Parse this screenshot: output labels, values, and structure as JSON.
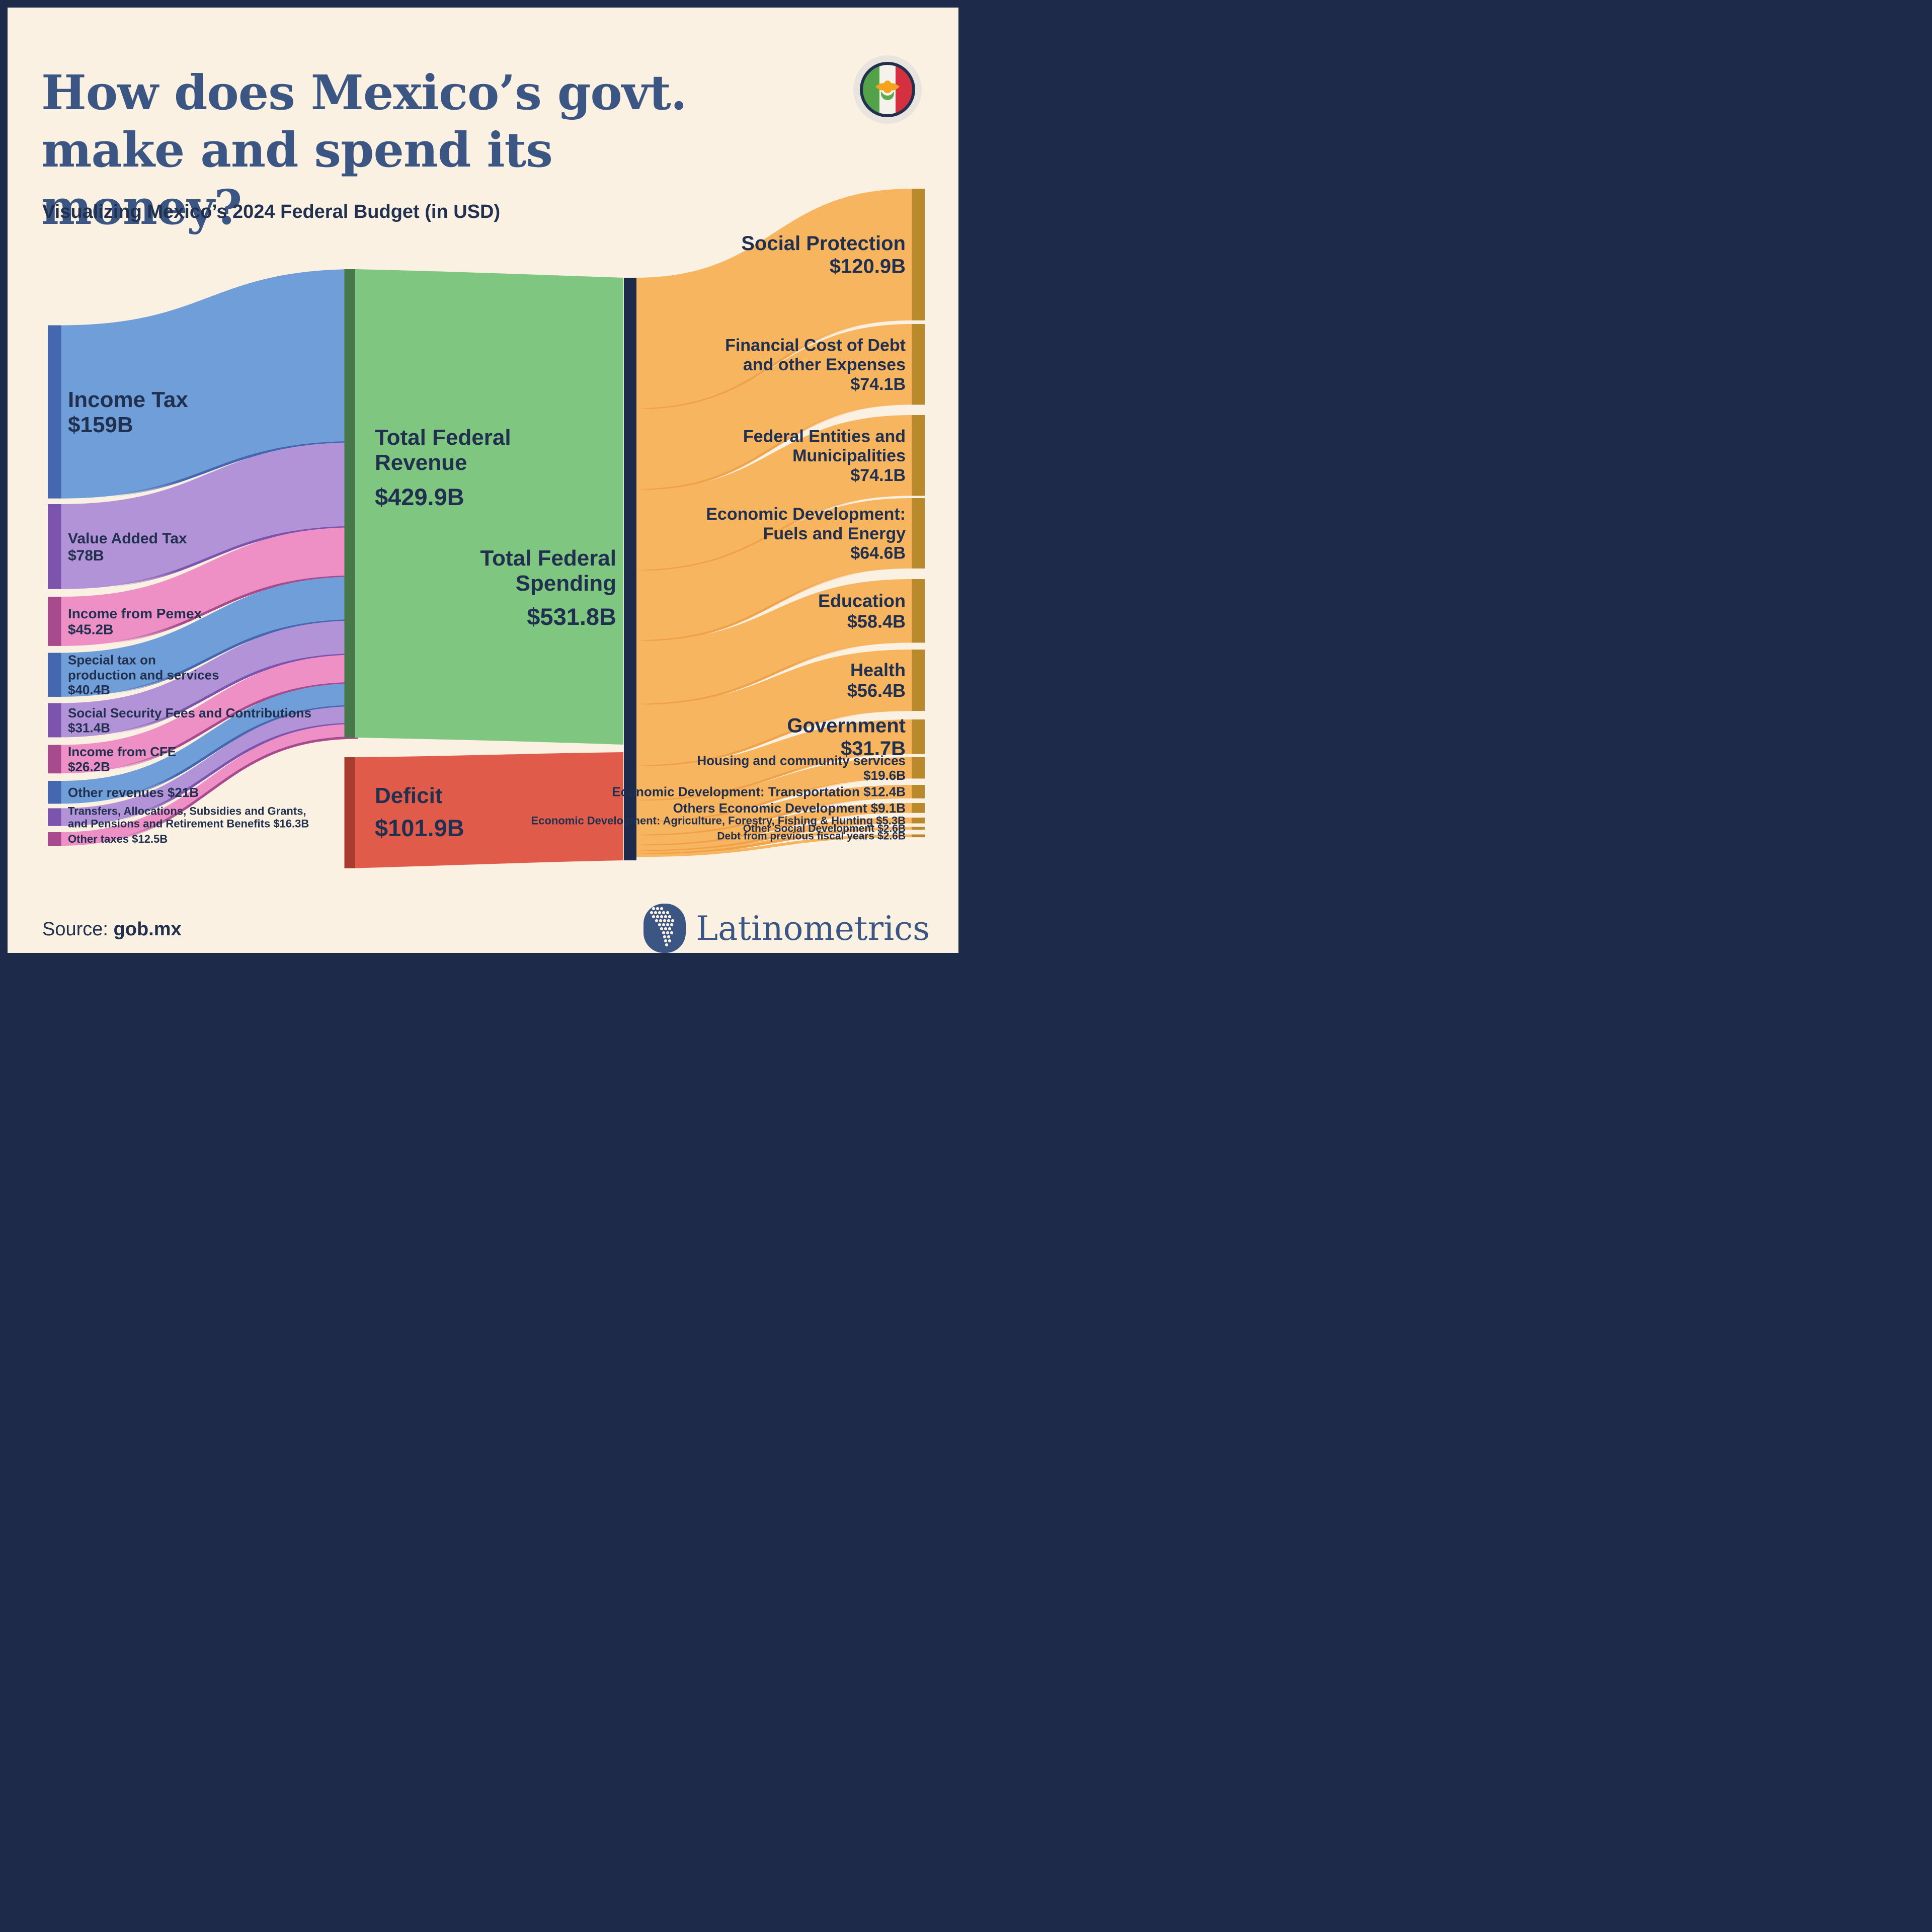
{
  "header": {
    "title_line1": "How does Mexico’s govt.",
    "title_line2": "make and spend its money?",
    "subtitle": "Visualizing Mexico’s 2024 Federal Budget (in USD)"
  },
  "footer": {
    "source_label": "Source:",
    "source_value": "gob.mx",
    "brand": "Latinometrics"
  },
  "icons": {
    "flag": "mexico-flag-icon",
    "brand": "latinometrics-logo-icon"
  },
  "colors": {
    "background": "#faf1e3",
    "navy": "#1e2a4a",
    "text_navy": "#22304f",
    "title_blue": "#3b5683",
    "blue": "#6f9ed8",
    "blue_edge": "#4467b0",
    "purple": "#b393d8",
    "purple_edge": "#7c54ae",
    "pink": "#ee8fc6",
    "pink_edge": "#a84a8e",
    "green": "#7fc681",
    "green_edge": "#47784a",
    "orange": "#f8b55f",
    "orange_edge": "#b9892b",
    "orange_streak": "#ef9d42",
    "red": "#e05b49",
    "red_edge": "#a93c2e",
    "flag_green": "#53a149",
    "flag_red": "#d5303f",
    "flag_eagle": "#f3a31c"
  },
  "chart_data": {
    "type": "sankey",
    "unit": "USD billions",
    "totals": {
      "revenue": {
        "label": "Total Federal Revenue",
        "lines": [
          "Total Federal",
          "Revenue"
        ],
        "value": 429.9,
        "value_label": "$429.9B"
      },
      "spending": {
        "label": "Total Federal Spending",
        "lines": [
          "Total Federal",
          "Spending"
        ],
        "value": 531.8,
        "value_label": "$531.8B"
      },
      "deficit": {
        "label": "Deficit",
        "lines": [
          "Deficit"
        ],
        "value": 101.9,
        "value_label": "$101.9B"
      }
    },
    "sources": [
      {
        "label": "Income Tax",
        "lines": [
          "Income Tax"
        ],
        "value": 159,
        "value_label": "$159B",
        "inline_value": false
      },
      {
        "label": "Value Added Tax",
        "lines": [
          "Value Added Tax"
        ],
        "value": 78,
        "value_label": "$78B",
        "inline_value": false
      },
      {
        "label": "Income from Pemex",
        "lines": [
          "Income from Pemex"
        ],
        "value": 45.2,
        "value_label": "$45.2B",
        "inline_value": false
      },
      {
        "label": "Special tax on production and services",
        "lines": [
          "Special tax on",
          "production and services"
        ],
        "value": 40.4,
        "value_label": "$40.4B",
        "inline_value": false
      },
      {
        "label": "Social Security Fees and Contributions",
        "lines": [
          "Social Security Fees and Contributions"
        ],
        "value": 31.4,
        "value_label": "$31.4B",
        "inline_value": false
      },
      {
        "label": "Income from CFE",
        "lines": [
          "Income from CFE"
        ],
        "value": 26.2,
        "value_label": "$26.2B",
        "inline_value": false
      },
      {
        "label": "Other revenues",
        "lines": [
          "Other revenues"
        ],
        "value": 21,
        "value_label": "$21B",
        "inline_value": true
      },
      {
        "label": "Transfers, Allocations, Subsidies and Grants, and Pensions and Retirement Benefits",
        "lines": [
          "Transfers, Allocations, Subsidies and Grants,",
          "and Pensions and Retirement Benefits"
        ],
        "value": 16.3,
        "value_label": "$16.3B",
        "inline_value": true
      },
      {
        "label": "Other taxes",
        "lines": [
          "Other taxes"
        ],
        "value": 12.5,
        "value_label": "$12.5B",
        "inline_value": true
      }
    ],
    "destinations": [
      {
        "label": "Social Protection",
        "lines": [
          "Social Protection"
        ],
        "value": 120.9,
        "value_label": "$120.9B",
        "inline_value": false
      },
      {
        "label": "Financial Cost of Debt and other Expenses",
        "lines": [
          "Financial Cost of Debt",
          "and other Expenses"
        ],
        "value": 74.1,
        "value_label": "$74.1B",
        "inline_value": false
      },
      {
        "label": "Federal Entities and Municipalities",
        "lines": [
          "Federal Entities and",
          "Municipalities"
        ],
        "value": 74.1,
        "value_label": "$74.1B",
        "inline_value": false
      },
      {
        "label": "Economic Development: Fuels and Energy",
        "lines": [
          "Economic Development:",
          "Fuels and Energy"
        ],
        "value": 64.6,
        "value_label": "$64.6B",
        "inline_value": false
      },
      {
        "label": "Education",
        "lines": [
          "Education"
        ],
        "value": 58.4,
        "value_label": "$58.4B",
        "inline_value": false
      },
      {
        "label": "Health",
        "lines": [
          "Health"
        ],
        "value": 56.4,
        "value_label": "$56.4B",
        "inline_value": false
      },
      {
        "label": "Government",
        "lines": [
          "Government"
        ],
        "value": 31.7,
        "value_label": "$31.7B",
        "inline_value": false
      },
      {
        "label": "Housing and community services",
        "lines": [
          "Housing and community services"
        ],
        "value": 19.6,
        "value_label": "$19.6B",
        "inline_value": false
      },
      {
        "label": "Economic Development: Transportation",
        "lines": [
          "Economic Development: Transportation"
        ],
        "value": 12.4,
        "value_label": "$12.4B",
        "inline_value": true
      },
      {
        "label": "Others Economic Development",
        "lines": [
          "Others Economic Development"
        ],
        "value": 9.1,
        "value_label": "$9.1B",
        "inline_value": true
      },
      {
        "label": "Economic Development: Agriculture, Forestry, Fishing & Hunting",
        "lines": [
          "Economic Development: Agriculture, Forestry, Fishing & Hunting"
        ],
        "value": 5.3,
        "value_label": "$5.3B",
        "inline_value": true
      },
      {
        "label": "Other Social Development",
        "lines": [
          "Other Social Development"
        ],
        "value": 2.6,
        "value_label": "$2.6B",
        "inline_value": true
      },
      {
        "label": "Debt from previous fiscal years",
        "lines": [
          "Debt from previous fiscal years"
        ],
        "value": 2.6,
        "value_label": "$2.6B",
        "inline_value": true
      }
    ]
  }
}
